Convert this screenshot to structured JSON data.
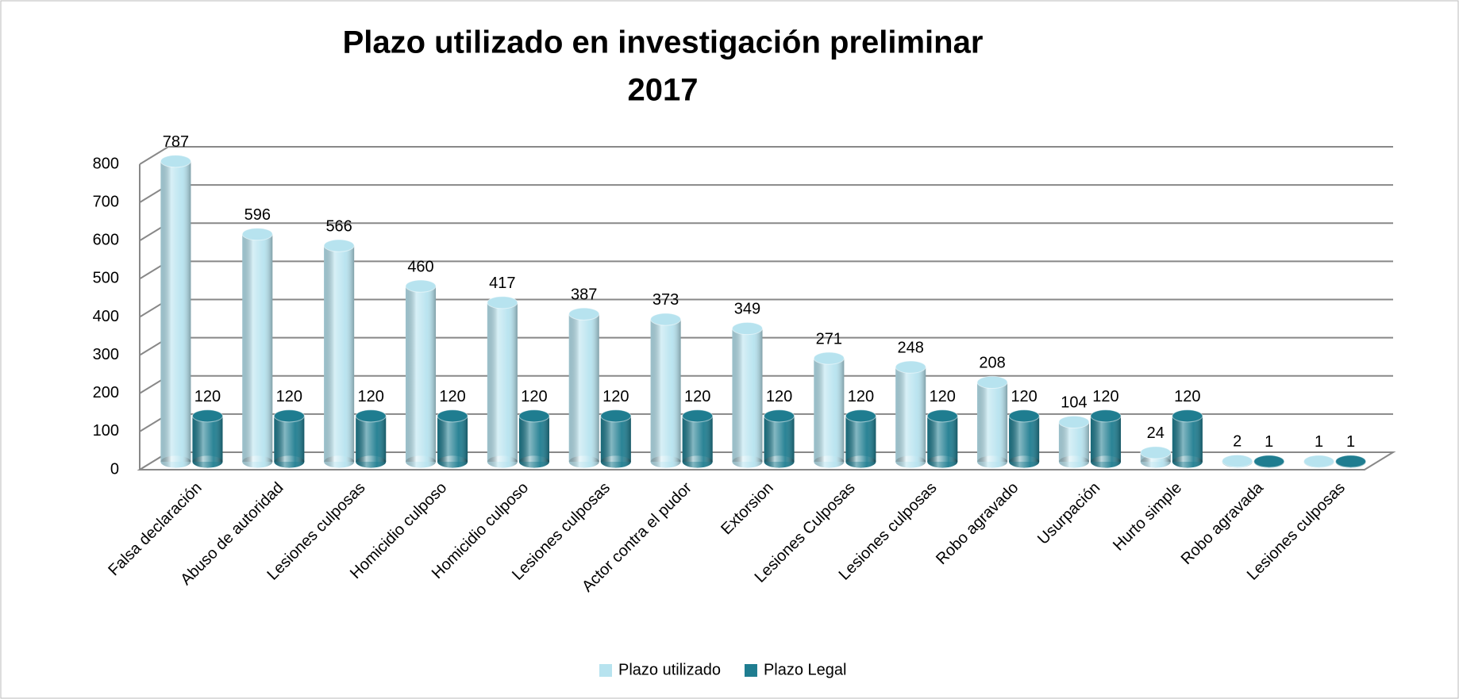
{
  "chart_data": {
    "type": "bar3d",
    "title": [
      "Plazo utilizado en investigación preliminar",
      "2017"
    ],
    "categories": [
      "Falsa declaración",
      "Abuso de autoridad",
      "Lesiones culposas",
      "Homicidio culposo",
      "Homicidio culposo",
      "Lesiones culposas",
      "Actor contra el pudor",
      "Extorsion",
      "Lesiones Culposas",
      "Lesiones culposas",
      "Robo agravado",
      "Usurpación",
      "Hurto simple",
      "Robo agravada",
      "Lesiones culposas"
    ],
    "series": [
      {
        "name": "Plazo utilizado",
        "color": "#b7e3ef",
        "values": [
          787,
          596,
          566,
          460,
          417,
          387,
          373,
          349,
          271,
          248,
          208,
          104,
          24,
          2,
          1
        ]
      },
      {
        "name": "Plazo Legal",
        "color": "#1f7d90",
        "values": [
          120,
          120,
          120,
          120,
          120,
          120,
          120,
          120,
          120,
          120,
          120,
          120,
          120,
          1,
          1
        ]
      }
    ],
    "ylim": [
      0,
      800
    ],
    "yticks": [
      0,
      100,
      200,
      300,
      400,
      500,
      600,
      700,
      800
    ],
    "grid": true,
    "legend": "bottom"
  }
}
